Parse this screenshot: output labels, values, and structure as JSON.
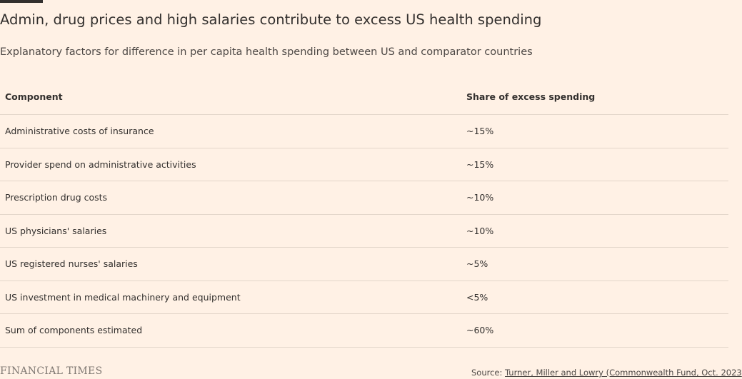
{
  "title": "Admin, drug prices and high salaries contribute to excess US health spending",
  "subtitle": "Explanatory factors for difference in per capita health spending between US and comparator countries",
  "chart_data": {
    "type": "table",
    "columns": [
      "Component",
      "Share of excess spending"
    ],
    "rows": [
      [
        "Administrative costs of insurance",
        "~15%"
      ],
      [
        "Provider spend on administrative activities",
        "~15%"
      ],
      [
        "Prescription drug costs",
        "~10%"
      ],
      [
        "US physicians' salaries",
        "~10%"
      ],
      [
        "US registered nurses' salaries",
        "~5%"
      ],
      [
        "US investment in medical machinery and equipment",
        "<5%"
      ],
      [
        "Sum of components estimated",
        "~60%"
      ]
    ]
  },
  "footer": {
    "logo": "FINANCIAL TIMES",
    "source_label": "Source: ",
    "source_link": "Turner, Miller and Lowry (Commonwealth Fund, Oct. 2023"
  },
  "colors": {
    "background": "#fff1e5",
    "text": "#33302e",
    "rule": "#e3d6ca"
  }
}
